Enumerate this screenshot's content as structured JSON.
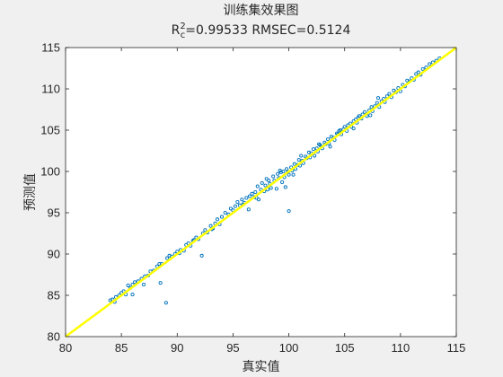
{
  "figure": {
    "background": "#f0f0f0",
    "plot_background": "#ffffff"
  },
  "chart_data": {
    "type": "scatter",
    "title": "训练集效果图",
    "subtitle": "R_c^2=0.99533  RMSEC=0.5124",
    "subtitle_parts": {
      "r": "R",
      "sup": "2",
      "sub": "c",
      "rest": "=0.99533  RMSEC=0.5124"
    },
    "xlabel": "真实值",
    "ylabel": "预测值",
    "xlim": [
      80,
      115
    ],
    "ylim": [
      80,
      115
    ],
    "xticks": [
      80,
      85,
      90,
      95,
      100,
      105,
      110,
      115
    ],
    "yticks": [
      80,
      85,
      90,
      95,
      100,
      105,
      110,
      115
    ],
    "grid": false,
    "colors": {
      "points": "#0072bd",
      "reference_line": "#ffff00",
      "axes": "#262626"
    },
    "reference_line": {
      "type": "y=x",
      "from": [
        80,
        80
      ],
      "to": [
        115,
        115
      ]
    },
    "series": [
      {
        "marker": "circle-open",
        "points": [
          [
            84.0,
            84.4
          ],
          [
            84.2,
            84.5
          ],
          [
            84.4,
            84.2
          ],
          [
            84.5,
            84.8
          ],
          [
            84.8,
            85.0
          ],
          [
            85.0,
            85.3
          ],
          [
            85.2,
            85.5
          ],
          [
            85.4,
            85.1
          ],
          [
            85.6,
            86.2
          ],
          [
            85.8,
            85.9
          ],
          [
            86.0,
            86.3
          ],
          [
            86.2,
            86.6
          ],
          [
            86.5,
            86.7
          ],
          [
            86.8,
            87.0
          ],
          [
            87.1,
            87.3
          ],
          [
            87.4,
            87.4
          ],
          [
            87.6,
            87.9
          ],
          [
            87.9,
            88.0
          ],
          [
            88.2,
            88.5
          ],
          [
            88.4,
            88.8
          ],
          [
            88.6,
            88.8
          ],
          [
            86.0,
            85.1
          ],
          [
            87.0,
            86.3
          ],
          [
            88.5,
            86.5
          ],
          [
            89.0,
            84.1
          ],
          [
            89.1,
            89.5
          ],
          [
            89.3,
            89.8
          ],
          [
            89.5,
            89.7
          ],
          [
            89.8,
            90.0
          ],
          [
            90.0,
            90.3
          ],
          [
            90.3,
            90.5
          ],
          [
            90.6,
            90.4
          ],
          [
            90.8,
            91.1
          ],
          [
            91.0,
            91.3
          ],
          [
            91.2,
            91.0
          ],
          [
            91.5,
            91.7
          ],
          [
            91.7,
            92.0
          ],
          [
            91.9,
            91.8
          ],
          [
            92.2,
            89.8
          ],
          [
            92.3,
            92.5
          ],
          [
            92.5,
            92.9
          ],
          [
            92.7,
            92.6
          ],
          [
            93.0,
            93.4
          ],
          [
            93.2,
            93.1
          ],
          [
            93.4,
            93.7
          ],
          [
            93.6,
            94.2
          ],
          [
            93.8,
            93.6
          ],
          [
            94.0,
            94.5
          ],
          [
            94.3,
            95.0
          ],
          [
            94.6,
            94.8
          ],
          [
            95.0,
            95.3
          ],
          [
            95.2,
            95.8
          ],
          [
            95.4,
            96.3
          ],
          [
            95.6,
            95.9
          ],
          [
            95.8,
            96.6
          ],
          [
            96.0,
            96.2
          ],
          [
            96.2,
            96.8
          ],
          [
            96.4,
            95.4
          ],
          [
            96.5,
            97.0
          ],
          [
            96.7,
            97.3
          ],
          [
            96.9,
            96.9
          ],
          [
            97.0,
            97.5
          ],
          [
            97.2,
            98.2
          ],
          [
            97.3,
            96.6
          ],
          [
            97.5,
            97.8
          ],
          [
            97.6,
            98.6
          ],
          [
            97.8,
            97.6
          ],
          [
            97.9,
            98.3
          ],
          [
            98.0,
            99.1
          ],
          [
            98.1,
            97.8
          ],
          [
            98.3,
            98.5
          ],
          [
            98.4,
            98.0
          ],
          [
            98.6,
            99.4
          ],
          [
            98.7,
            98.9
          ],
          [
            98.9,
            97.9
          ],
          [
            99.0,
            99.7
          ],
          [
            99.1,
            99.2
          ],
          [
            99.3,
            99.9
          ],
          [
            99.4,
            98.7
          ],
          [
            99.5,
            100.0
          ],
          [
            99.6,
            99.3
          ],
          [
            99.7,
            98.1
          ],
          [
            99.8,
            100.3
          ],
          [
            99.9,
            99.9
          ],
          [
            100.0,
            99.6
          ],
          [
            100.0,
            95.2
          ],
          [
            100.2,
            100.5
          ],
          [
            100.3,
            100.1
          ],
          [
            100.4,
            99.6
          ],
          [
            100.5,
            100.9
          ],
          [
            100.6,
            100.3
          ],
          [
            100.8,
            100.8
          ],
          [
            100.9,
            101.4
          ],
          [
            101.0,
            100.7
          ],
          [
            101.2,
            101.3
          ],
          [
            101.3,
            101.0
          ],
          [
            101.5,
            101.8
          ],
          [
            101.6,
            101.6
          ],
          [
            101.8,
            102.3
          ],
          [
            101.9,
            101.7
          ],
          [
            102.0,
            102.2
          ],
          [
            102.2,
            102.7
          ],
          [
            102.3,
            101.9
          ],
          [
            102.5,
            102.8
          ],
          [
            102.6,
            102.4
          ],
          [
            102.8,
            103.2
          ],
          [
            102.9,
            103.0
          ],
          [
            103.0,
            102.8
          ],
          [
            103.2,
            103.5
          ],
          [
            103.3,
            103.3
          ],
          [
            103.5,
            103.9
          ],
          [
            103.6,
            103.4
          ],
          [
            103.8,
            104.2
          ],
          [
            104.0,
            104.1
          ],
          [
            104.1,
            103.8
          ],
          [
            104.3,
            104.6
          ],
          [
            104.4,
            104.5
          ],
          [
            104.6,
            105.0
          ],
          [
            104.7,
            104.5
          ],
          [
            104.9,
            105.1
          ],
          [
            105.0,
            105.4
          ],
          [
            105.2,
            104.9
          ],
          [
            105.3,
            105.6
          ],
          [
            105.5,
            105.8
          ],
          [
            105.6,
            105.4
          ],
          [
            105.8,
            106.1
          ],
          [
            106.0,
            106.3
          ],
          [
            106.1,
            105.9
          ],
          [
            106.3,
            106.7
          ],
          [
            106.5,
            106.4
          ],
          [
            106.6,
            106.9
          ],
          [
            106.8,
            107.2
          ],
          [
            107.0,
            106.7
          ],
          [
            107.2,
            107.4
          ],
          [
            107.4,
            107.8
          ],
          [
            107.5,
            107.3
          ],
          [
            107.7,
            107.9
          ],
          [
            107.9,
            108.3
          ],
          [
            108.1,
            107.8
          ],
          [
            108.3,
            108.5
          ],
          [
            108.5,
            108.8
          ],
          [
            108.6,
            108.4
          ],
          [
            108.8,
            109.1
          ],
          [
            109.0,
            109.4
          ],
          [
            109.2,
            109.0
          ],
          [
            109.4,
            109.8
          ],
          [
            109.6,
            109.6
          ],
          [
            109.8,
            110.1
          ],
          [
            110.0,
            109.7
          ],
          [
            110.2,
            110.5
          ],
          [
            110.4,
            110.3
          ],
          [
            110.6,
            111.0
          ],
          [
            110.8,
            110.9
          ],
          [
            111.0,
            111.3
          ],
          [
            111.2,
            111.1
          ],
          [
            111.4,
            111.8
          ],
          [
            111.6,
            112.0
          ],
          [
            111.8,
            111.7
          ],
          [
            112.0,
            112.4
          ],
          [
            112.3,
            112.6
          ],
          [
            112.6,
            113.0
          ],
          [
            112.9,
            113.2
          ],
          [
            113.2,
            113.4
          ],
          [
            113.5,
            113.7
          ],
          [
            105.8,
            105.2
          ],
          [
            107.3,
            106.8
          ],
          [
            108.0,
            108.9
          ],
          [
            103.7,
            103.0
          ],
          [
            98.2,
            98.9
          ],
          [
            97.1,
            96.8
          ],
          [
            95.9,
            96.0
          ],
          [
            94.8,
            95.5
          ],
          [
            93.1,
            93.0
          ],
          [
            91.4,
            91.6
          ],
          [
            90.2,
            90.1
          ],
          [
            99.2,
            100.1
          ],
          [
            101.1,
            101.9
          ],
          [
            102.7,
            103.3
          ],
          [
            104.5,
            104.9
          ],
          [
            106.2,
            106.5
          ]
        ]
      }
    ]
  }
}
